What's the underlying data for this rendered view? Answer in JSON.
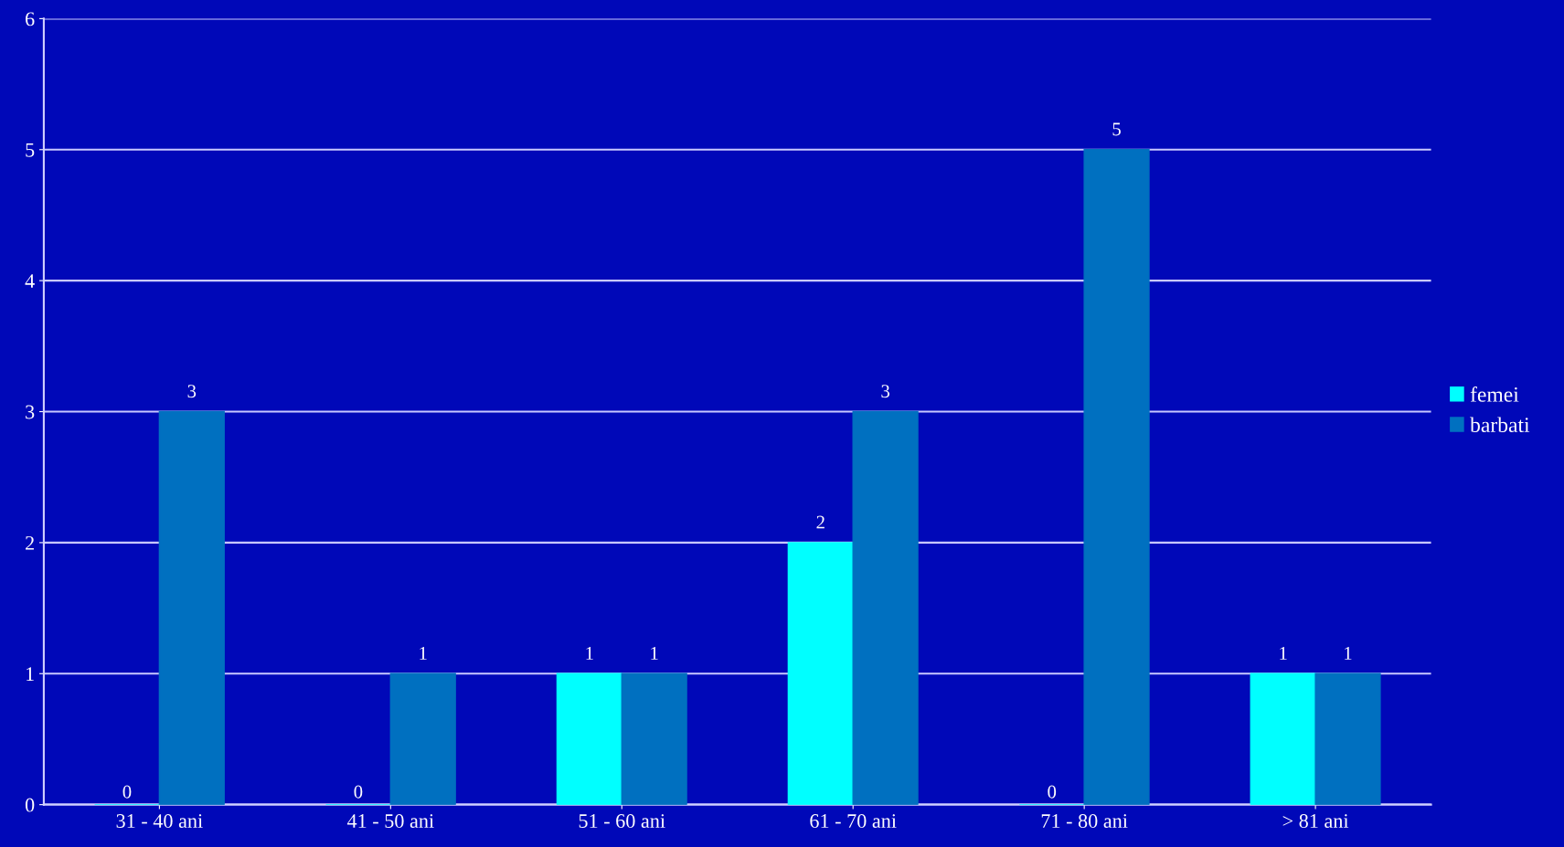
{
  "chart_data": {
    "type": "bar",
    "categories": [
      "31 - 40 ani",
      "41 - 50 ani",
      "51 - 60 ani",
      "61 - 70 ani",
      "71 - 80 ani",
      "> 81 ani"
    ],
    "series": [
      {
        "name": "femei",
        "color": "#00ffff",
        "values": [
          0,
          0,
          1,
          2,
          0,
          1
        ]
      },
      {
        "name": "barbati",
        "color": "#0070c0",
        "values": [
          3,
          1,
          1,
          3,
          5,
          1
        ]
      }
    ],
    "ylim": [
      0,
      6
    ],
    "yticks": [
      0,
      1,
      2,
      3,
      4,
      5,
      6
    ],
    "grid": "y",
    "legend": "right",
    "data_labels": true
  }
}
